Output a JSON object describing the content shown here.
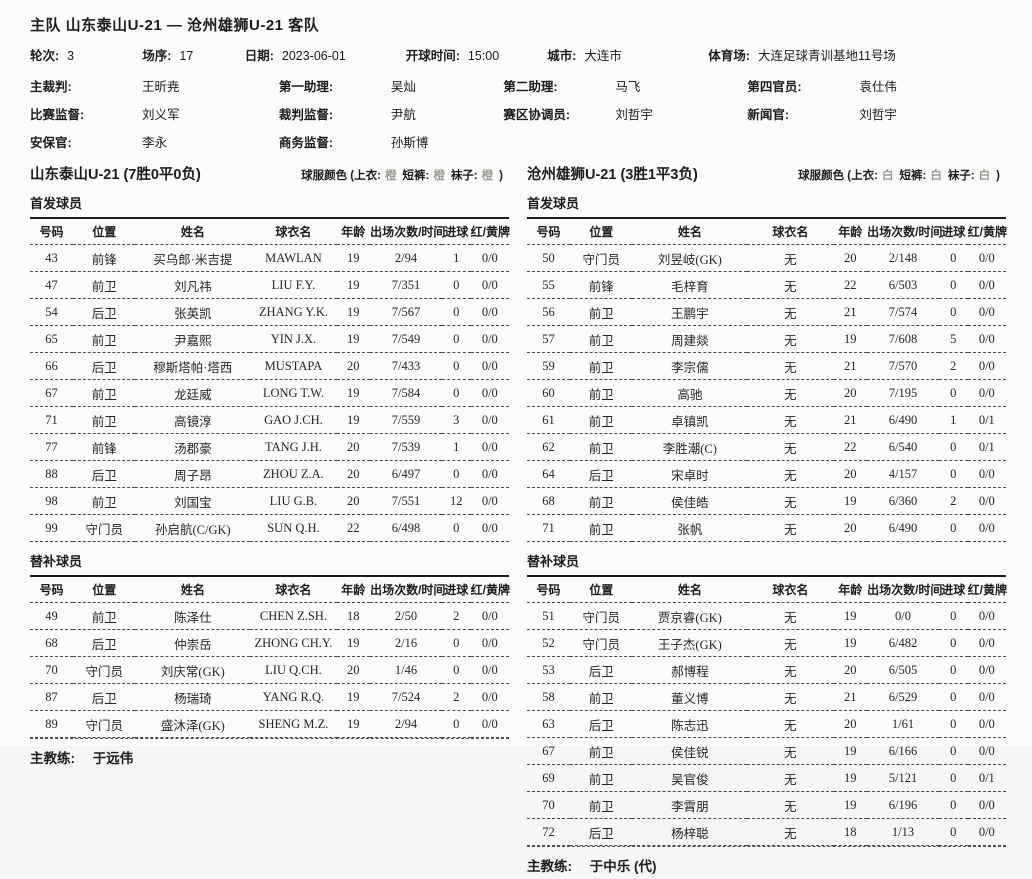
{
  "header": {
    "title": "主队 山东泰山U-21 — 沧州雄狮U-21 客队",
    "info": [
      {
        "label": "轮次:",
        "value": "3"
      },
      {
        "label": "场序:",
        "value": "17"
      },
      {
        "label": "日期:",
        "value": "2023-06-01"
      },
      {
        "label": "开球时间:",
        "value": "15:00"
      },
      {
        "label": "城市:",
        "value": "大连市"
      },
      {
        "label": "体育场:",
        "value": "大连足球青训基地11号场"
      }
    ],
    "officials": [
      {
        "label": "主裁判:",
        "value": "王昕尭"
      },
      {
        "label": "第一助理:",
        "value": "吴灿"
      },
      {
        "label": "第二助理:",
        "value": "马飞"
      },
      {
        "label": "第四官员:",
        "value": "袁仕伟"
      },
      {
        "label": "比赛监督:",
        "value": "刘义军"
      },
      {
        "label": "裁判监督:",
        "value": "尹航"
      },
      {
        "label": "赛区协调员:",
        "value": "刘哲宇"
      },
      {
        "label": "新闻官:",
        "value": "刘哲宇"
      },
      {
        "label": "安保官:",
        "value": "李永"
      },
      {
        "label": "商务监督:",
        "value": "孙斯博"
      }
    ]
  },
  "labels": {
    "starters": "首发球员",
    "subs": "替补球员",
    "coach": "主教练:",
    "kit_prefix": "球服颜色 (上衣:",
    "kit_shorts": "短裤:",
    "kit_socks": "袜子:",
    "kit_suffix": ")"
  },
  "table_headers": [
    "号码",
    "位置",
    "姓名",
    "球衣名",
    "年龄",
    "出场次数/时间",
    "进球",
    "红/黄牌"
  ],
  "teams": [
    {
      "name": "山东泰山U-21",
      "record": "(7胜0平0负)",
      "kit": {
        "top": "橙",
        "shorts": "橙",
        "socks": "橙"
      },
      "coach": "于远伟",
      "starters": [
        [
          "43",
          "前锋",
          "买乌郎·米吉提",
          "MAWLAN",
          "19",
          "2/94",
          "1",
          "0/0"
        ],
        [
          "47",
          "前卫",
          "刘凡祎",
          "LIU F.Y.",
          "19",
          "7/351",
          "0",
          "0/0"
        ],
        [
          "54",
          "后卫",
          "张英凯",
          "ZHANG Y.K.",
          "19",
          "7/567",
          "0",
          "0/0"
        ],
        [
          "65",
          "前卫",
          "尹嘉熙",
          "YIN J.X.",
          "19",
          "7/549",
          "0",
          "0/0"
        ],
        [
          "66",
          "后卫",
          "穆斯塔帕·塔西",
          "MUSTAPA",
          "20",
          "7/433",
          "0",
          "0/0"
        ],
        [
          "67",
          "前卫",
          "龙廷威",
          "LONG T.W.",
          "19",
          "7/584",
          "0",
          "0/0"
        ],
        [
          "71",
          "前卫",
          "高镜淳",
          "GAO J.CH.",
          "19",
          "7/559",
          "3",
          "0/0"
        ],
        [
          "77",
          "前锋",
          "汤郡豪",
          "TANG J.H.",
          "20",
          "7/539",
          "1",
          "0/0"
        ],
        [
          "88",
          "后卫",
          "周子昂",
          "ZHOU Z.A.",
          "20",
          "6/497",
          "0",
          "0/0"
        ],
        [
          "98",
          "前卫",
          "刘国宝",
          "LIU G.B.",
          "20",
          "7/551",
          "12",
          "0/0"
        ],
        [
          "99",
          "守门员",
          "孙启航(C/GK)",
          "SUN Q.H.",
          "22",
          "6/498",
          "0",
          "0/0"
        ]
      ],
      "subs": [
        [
          "49",
          "前卫",
          "陈泽仕",
          "CHEN Z.SH.",
          "18",
          "2/50",
          "2",
          "0/0"
        ],
        [
          "68",
          "后卫",
          "仲崇岳",
          "ZHONG CH.Y.",
          "19",
          "2/16",
          "0",
          "0/0"
        ],
        [
          "70",
          "守门员",
          "刘庆常(GK)",
          "LIU Q.CH.",
          "20",
          "1/46",
          "0",
          "0/0"
        ],
        [
          "87",
          "后卫",
          "杨瑞琦",
          "YANG R.Q.",
          "19",
          "7/524",
          "2",
          "0/0"
        ],
        [
          "89",
          "守门员",
          "盛沐泽(GK)",
          "SHENG M.Z.",
          "19",
          "2/94",
          "0",
          "0/0"
        ]
      ]
    },
    {
      "name": "沧州雄狮U-21",
      "record": "(3胜1平3负)",
      "kit": {
        "top": "白",
        "shorts": "白",
        "socks": "白"
      },
      "coach": "于中乐 (代)",
      "starters": [
        [
          "50",
          "守门员",
          "刘昱岐(GK)",
          "无",
          "20",
          "2/148",
          "0",
          "0/0"
        ],
        [
          "55",
          "前锋",
          "毛梓育",
          "无",
          "22",
          "6/503",
          "0",
          "0/0"
        ],
        [
          "56",
          "前卫",
          "王鹏宇",
          "无",
          "21",
          "7/574",
          "0",
          "0/0"
        ],
        [
          "57",
          "前卫",
          "周建燚",
          "无",
          "19",
          "7/608",
          "5",
          "0/0"
        ],
        [
          "59",
          "前卫",
          "李宗儒",
          "无",
          "21",
          "7/570",
          "2",
          "0/0"
        ],
        [
          "60",
          "前卫",
          "高驰",
          "无",
          "20",
          "7/195",
          "0",
          "0/0"
        ],
        [
          "61",
          "前卫",
          "卓镇凯",
          "无",
          "21",
          "6/490",
          "1",
          "0/1"
        ],
        [
          "62",
          "前卫",
          "李胜潮(C)",
          "无",
          "22",
          "6/540",
          "0",
          "0/1"
        ],
        [
          "64",
          "后卫",
          "宋卓时",
          "无",
          "20",
          "4/157",
          "0",
          "0/0"
        ],
        [
          "68",
          "前卫",
          "侯佳皓",
          "无",
          "19",
          "6/360",
          "2",
          "0/0"
        ],
        [
          "71",
          "前卫",
          "张帆",
          "无",
          "20",
          "6/490",
          "0",
          "0/0"
        ]
      ],
      "subs": [
        [
          "51",
          "守门员",
          "贾京睿(GK)",
          "无",
          "19",
          "0/0",
          "0",
          "0/0"
        ],
        [
          "52",
          "守门员",
          "王子杰(GK)",
          "无",
          "19",
          "6/482",
          "0",
          "0/0"
        ],
        [
          "53",
          "后卫",
          "郝博程",
          "无",
          "20",
          "6/505",
          "0",
          "0/0"
        ],
        [
          "58",
          "前卫",
          "董义博",
          "无",
          "21",
          "6/529",
          "0",
          "0/0"
        ],
        [
          "63",
          "后卫",
          "陈志迅",
          "无",
          "20",
          "1/61",
          "0",
          "0/0"
        ],
        [
          "67",
          "前卫",
          "侯佳锐",
          "无",
          "19",
          "6/166",
          "0",
          "0/0"
        ],
        [
          "69",
          "前卫",
          "吴官俊",
          "无",
          "19",
          "5/121",
          "0",
          "0/1"
        ],
        [
          "70",
          "前卫",
          "李霄朋",
          "无",
          "19",
          "6/196",
          "0",
          "0/0"
        ],
        [
          "72",
          "后卫",
          "杨梓聪",
          "无",
          "18",
          "1/13",
          "0",
          "0/0"
        ]
      ]
    }
  ]
}
